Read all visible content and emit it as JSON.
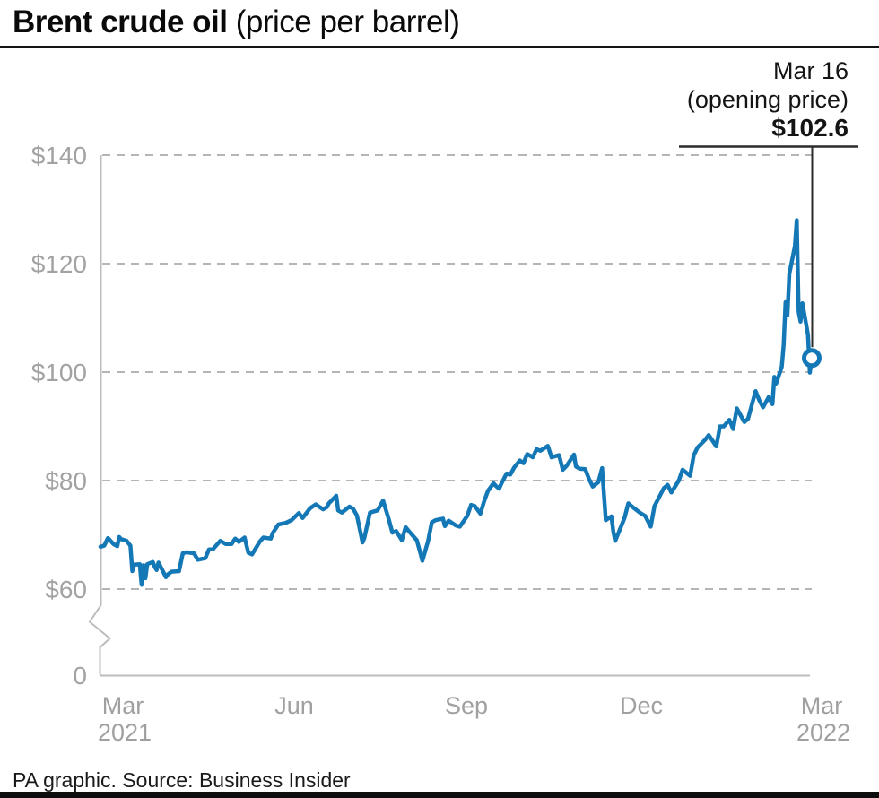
{
  "title": {
    "main": "Brent crude oil",
    "sub": "(price per barrel)"
  },
  "annotation": {
    "line1": "Mar 16",
    "line2": "(opening price)",
    "line3": "$102.6"
  },
  "footer": {
    "credit": "PA graphic. Source: Business Insider"
  },
  "colors": {
    "line": "#1478b6",
    "grid": "#b5b5b5",
    "axis": "#bcbcbc",
    "tick_label": "#a2a2a2",
    "callout": "#2b2b2b",
    "title_text": "#0a0a0a",
    "bottom_bar": "#0d0d0d"
  },
  "chart_data": {
    "type": "line",
    "title": "Brent crude oil (price per barrel)",
    "unit": "USD per barrel",
    "grid": "dashed-horizontal",
    "y_axis": {
      "min": 0,
      "max": 140,
      "break_between": [
        0,
        60
      ]
    },
    "y_ticks": [
      {
        "label": "$140",
        "value": 140
      },
      {
        "label": "$120",
        "value": 120
      },
      {
        "label": "$100",
        "value": 100
      },
      {
        "label": "$80",
        "value": 80
      },
      {
        "label": "$60",
        "value": 60
      },
      {
        "label": "0",
        "value": 0
      }
    ],
    "x_ticks": [
      {
        "line1": "Mar",
        "line2": "2021"
      },
      {
        "line1": "Jun",
        "line2": ""
      },
      {
        "line1": "Sep",
        "line2": ""
      },
      {
        "line1": "Dec",
        "line2": ""
      },
      {
        "line1": "Mar",
        "line2": "2022"
      }
    ],
    "x_start": "2021-03-01",
    "x_end": "2022-03-16",
    "end_point": {
      "date": "2022-03-16",
      "value": 102.6,
      "label": "Mar 16 (opening price) $102.6"
    },
    "series": [
      {
        "name": "Brent crude oil price",
        "color": "#1478b6",
        "points": [
          [
            "2021-03-01",
            67.8
          ],
          [
            "2021-03-03",
            68.0
          ],
          [
            "2021-03-05",
            69.4
          ],
          [
            "2021-03-08",
            68.3
          ],
          [
            "2021-03-10",
            67.9
          ],
          [
            "2021-03-11",
            69.6
          ],
          [
            "2021-03-12",
            69.2
          ],
          [
            "2021-03-15",
            68.9
          ],
          [
            "2021-03-17",
            68.0
          ],
          [
            "2021-03-18",
            63.3
          ],
          [
            "2021-03-19",
            64.5
          ],
          [
            "2021-03-22",
            64.6
          ],
          [
            "2021-03-23",
            60.8
          ],
          [
            "2021-03-24",
            64.4
          ],
          [
            "2021-03-25",
            62.0
          ],
          [
            "2021-03-26",
            64.6
          ],
          [
            "2021-03-29",
            65.0
          ],
          [
            "2021-03-30",
            64.1
          ],
          [
            "2021-03-31",
            63.5
          ],
          [
            "2021-04-01",
            64.9
          ],
          [
            "2021-04-05",
            62.2
          ],
          [
            "2021-04-06",
            62.7
          ],
          [
            "2021-04-08",
            63.2
          ],
          [
            "2021-04-12",
            63.3
          ],
          [
            "2021-04-14",
            66.6
          ],
          [
            "2021-04-16",
            66.8
          ],
          [
            "2021-04-20",
            66.6
          ],
          [
            "2021-04-22",
            65.4
          ],
          [
            "2021-04-26",
            65.7
          ],
          [
            "2021-04-28",
            67.3
          ],
          [
            "2021-04-30",
            67.3
          ],
          [
            "2021-05-04",
            68.9
          ],
          [
            "2021-05-07",
            68.3
          ],
          [
            "2021-05-10",
            68.3
          ],
          [
            "2021-05-12",
            69.3
          ],
          [
            "2021-05-14",
            68.7
          ],
          [
            "2021-05-17",
            69.5
          ],
          [
            "2021-05-19",
            66.7
          ],
          [
            "2021-05-21",
            66.4
          ],
          [
            "2021-05-25",
            68.7
          ],
          [
            "2021-05-27",
            69.5
          ],
          [
            "2021-05-31",
            69.3
          ],
          [
            "2021-06-01",
            70.3
          ],
          [
            "2021-06-04",
            71.9
          ],
          [
            "2021-06-08",
            72.2
          ],
          [
            "2021-06-11",
            72.7
          ],
          [
            "2021-06-15",
            74.0
          ],
          [
            "2021-06-17",
            73.1
          ],
          [
            "2021-06-21",
            74.9
          ],
          [
            "2021-06-24",
            75.6
          ],
          [
            "2021-06-28",
            74.7
          ],
          [
            "2021-06-30",
            75.1
          ],
          [
            "2021-07-01",
            75.8
          ],
          [
            "2021-07-05",
            77.2
          ],
          [
            "2021-07-06",
            74.5
          ],
          [
            "2021-07-08",
            74.1
          ],
          [
            "2021-07-12",
            75.2
          ],
          [
            "2021-07-14",
            74.8
          ],
          [
            "2021-07-16",
            73.6
          ],
          [
            "2021-07-19",
            68.6
          ],
          [
            "2021-07-20",
            69.4
          ],
          [
            "2021-07-23",
            74.1
          ],
          [
            "2021-07-27",
            74.5
          ],
          [
            "2021-07-30",
            76.3
          ],
          [
            "2021-08-02",
            72.9
          ],
          [
            "2021-08-04",
            70.4
          ],
          [
            "2021-08-06",
            70.7
          ],
          [
            "2021-08-09",
            69.0
          ],
          [
            "2021-08-11",
            71.4
          ],
          [
            "2021-08-13",
            70.6
          ],
          [
            "2021-08-17",
            69.0
          ],
          [
            "2021-08-19",
            66.5
          ],
          [
            "2021-08-20",
            65.2
          ],
          [
            "2021-08-23",
            68.8
          ],
          [
            "2021-08-25",
            72.3
          ],
          [
            "2021-08-27",
            72.7
          ],
          [
            "2021-08-31",
            73.0
          ],
          [
            "2021-09-01",
            71.6
          ],
          [
            "2021-09-03",
            72.6
          ],
          [
            "2021-09-07",
            71.7
          ],
          [
            "2021-09-09",
            71.5
          ],
          [
            "2021-09-13",
            73.5
          ],
          [
            "2021-09-15",
            75.5
          ],
          [
            "2021-09-17",
            75.3
          ],
          [
            "2021-09-20",
            73.9
          ],
          [
            "2021-09-22",
            76.2
          ],
          [
            "2021-09-24",
            78.1
          ],
          [
            "2021-09-27",
            79.5
          ],
          [
            "2021-09-28",
            79.1
          ],
          [
            "2021-09-30",
            78.5
          ],
          [
            "2021-10-01",
            79.3
          ],
          [
            "2021-10-04",
            81.3
          ],
          [
            "2021-10-06",
            81.1
          ],
          [
            "2021-10-08",
            82.4
          ],
          [
            "2021-10-11",
            83.7
          ],
          [
            "2021-10-13",
            83.2
          ],
          [
            "2021-10-15",
            84.9
          ],
          [
            "2021-10-18",
            84.3
          ],
          [
            "2021-10-20",
            85.8
          ],
          [
            "2021-10-22",
            85.5
          ],
          [
            "2021-10-26",
            86.4
          ],
          [
            "2021-10-28",
            84.3
          ],
          [
            "2021-10-29",
            84.4
          ],
          [
            "2021-11-01",
            84.7
          ],
          [
            "2021-11-03",
            82.0
          ],
          [
            "2021-11-05",
            82.7
          ],
          [
            "2021-11-09",
            84.8
          ],
          [
            "2021-11-10",
            82.6
          ],
          [
            "2021-11-12",
            82.2
          ],
          [
            "2021-11-15",
            82.1
          ],
          [
            "2021-11-17",
            80.3
          ],
          [
            "2021-11-19",
            78.9
          ],
          [
            "2021-11-22",
            79.7
          ],
          [
            "2021-11-24",
            82.3
          ],
          [
            "2021-11-26",
            72.7
          ],
          [
            "2021-11-29",
            73.4
          ],
          [
            "2021-11-30",
            70.6
          ],
          [
            "2021-12-01",
            68.9
          ],
          [
            "2021-12-02",
            69.7
          ],
          [
            "2021-12-06",
            73.1
          ],
          [
            "2021-12-08",
            75.8
          ],
          [
            "2021-12-10",
            75.2
          ],
          [
            "2021-12-13",
            74.4
          ],
          [
            "2021-12-15",
            73.9
          ],
          [
            "2021-12-17",
            73.5
          ],
          [
            "2021-12-20",
            71.5
          ],
          [
            "2021-12-22",
            75.3
          ],
          [
            "2021-12-27",
            78.6
          ],
          [
            "2021-12-29",
            79.2
          ],
          [
            "2021-12-31",
            77.8
          ],
          [
            "2022-01-04",
            80.0
          ],
          [
            "2022-01-06",
            82.0
          ],
          [
            "2022-01-10",
            80.9
          ],
          [
            "2022-01-12",
            84.7
          ],
          [
            "2022-01-14",
            86.1
          ],
          [
            "2022-01-18",
            87.5
          ],
          [
            "2022-01-20",
            88.4
          ],
          [
            "2022-01-24",
            86.3
          ],
          [
            "2022-01-26",
            90.0
          ],
          [
            "2022-01-28",
            90.0
          ],
          [
            "2022-01-31",
            91.2
          ],
          [
            "2022-02-02",
            89.5
          ],
          [
            "2022-02-04",
            93.3
          ],
          [
            "2022-02-08",
            90.8
          ],
          [
            "2022-02-10",
            91.4
          ],
          [
            "2022-02-14",
            96.5
          ],
          [
            "2022-02-16",
            94.8
          ],
          [
            "2022-02-18",
            93.5
          ],
          [
            "2022-02-21",
            95.4
          ],
          [
            "2022-02-23",
            94.1
          ],
          [
            "2022-02-24",
            99.1
          ],
          [
            "2022-02-25",
            97.9
          ],
          [
            "2022-02-28",
            101.0
          ],
          [
            "2022-03-01",
            105.0
          ],
          [
            "2022-03-02",
            112.9
          ],
          [
            "2022-03-03",
            110.5
          ],
          [
            "2022-03-04",
            118.1
          ],
          [
            "2022-03-07",
            123.2
          ],
          [
            "2022-03-08",
            128.0
          ],
          [
            "2022-03-09",
            111.1
          ],
          [
            "2022-03-10",
            109.3
          ],
          [
            "2022-03-11",
            112.7
          ],
          [
            "2022-03-14",
            106.9
          ],
          [
            "2022-03-15",
            99.9
          ],
          [
            "2022-03-16",
            102.6
          ]
        ]
      }
    ]
  }
}
